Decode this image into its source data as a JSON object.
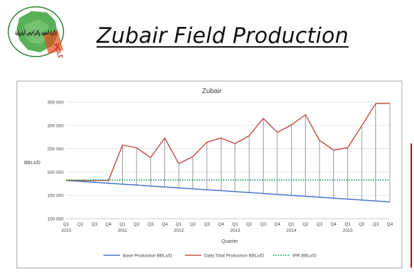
{
  "slide": {
    "title": "Zubair Field Production",
    "logo_text": "دائرة العقود والتراخيص البترولية",
    "logo_badge": "PCLD"
  },
  "colors": {
    "base": "#4472c4",
    "total": "#c0504d",
    "ipr": "#00a651",
    "grid": "#d9d9d9",
    "axis_text": "#404040",
    "accent_line": "#c00000"
  },
  "chart_data": {
    "type": "line",
    "title": "Zubair",
    "xlabel": "Quarter",
    "ylabel": "BBLs/D",
    "ylim": [
      100000,
      350000
    ],
    "yticks": [
      100000,
      150000,
      200000,
      250000,
      300000,
      350000
    ],
    "ytick_labels": [
      "100 000",
      "150 000",
      "200 000",
      "250 000",
      "300 000",
      "350 000"
    ],
    "grid": true,
    "legend_position": "bottom",
    "categories": [
      "Q1",
      "Q2",
      "Q3",
      "Q4",
      "Q1",
      "Q2",
      "Q3",
      "Q4",
      "Q1",
      "Q2",
      "Q3",
      "Q4",
      "Q1",
      "Q2",
      "Q3",
      "Q4",
      "Q1",
      "Q2",
      "Q3",
      "Q4",
      "Q1",
      "Q2",
      "Q3",
      "Q4"
    ],
    "year_labels": [
      {
        "index": 0,
        "label": "2010"
      },
      {
        "index": 4,
        "label": "2011"
      },
      {
        "index": 8,
        "label": "2012"
      },
      {
        "index": 12,
        "label": "2013"
      },
      {
        "index": 16,
        "label": "2014"
      },
      {
        "index": 20,
        "label": "2015"
      }
    ],
    "series": [
      {
        "name": "Base Production BBLs/D",
        "style": "solid",
        "values": [
          182000,
          180000,
          178000,
          176000,
          174000,
          172000,
          170000,
          168000,
          166000,
          164000,
          162000,
          160000,
          158000,
          156000,
          154000,
          152000,
          150000,
          148000,
          146000,
          144000,
          142000,
          140000,
          138000,
          136000
        ]
      },
      {
        "name": "Daily Total Production BBLs/D",
        "style": "solid",
        "values": [
          182000,
          182000,
          182000,
          182000,
          258000,
          252000,
          231000,
          273000,
          218000,
          233000,
          264000,
          273000,
          261000,
          278000,
          315000,
          285000,
          301000,
          323000,
          268000,
          247000,
          252000,
          299000,
          347000,
          347000
        ]
      },
      {
        "name": "IPR BBLs/D",
        "style": "dotted",
        "values": [
          183000,
          183000,
          183000,
          183000,
          183000,
          183000,
          183000,
          183000,
          183000,
          183000,
          183000,
          183000,
          183000,
          183000,
          183000,
          183000,
          183000,
          183000,
          183000,
          183000,
          183000,
          183000,
          183000,
          183000
        ]
      }
    ],
    "drop_lines": {
      "from_series": "Daily Total Production BBLs/D",
      "to_series": "Base Production BBLs/D"
    }
  }
}
